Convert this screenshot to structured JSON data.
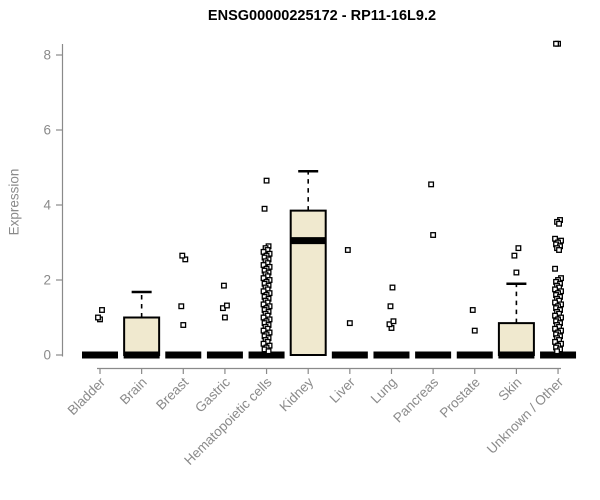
{
  "chart_data": {
    "type": "boxplot",
    "title": "ENSG00000225172 - RP11-16L9.2",
    "ylabel": "Expression",
    "xlabel": "",
    "ylim": [
      0,
      8.4
    ],
    "yticks": [
      0,
      2,
      4,
      6,
      8
    ],
    "grid": false,
    "axis_color": "#8a8a8a",
    "box_fill": "#F0E9CF",
    "box_stroke": "#000000",
    "outlier_fill": "#ffffff",
    "categories": [
      "Bladder",
      "Brain",
      "Breast",
      "Gastric",
      "Hematopoietic cells",
      "Kidney",
      "Liver",
      "Lung",
      "Pancreas",
      "Prostate",
      "Skin",
      "Unknown / Other"
    ],
    "series": [
      {
        "category": "Bladder",
        "q1": 0,
        "median": 0,
        "q3": 0,
        "whisker_low": 0,
        "whisker_high": 0,
        "outliers": [
          0.95,
          1.0,
          1.2
        ]
      },
      {
        "category": "Brain",
        "q1": 0,
        "median": 0,
        "q3": 1.0,
        "whisker_low": 0,
        "whisker_high": 1.68,
        "outliers": []
      },
      {
        "category": "Breast",
        "q1": 0,
        "median": 0,
        "q3": 0,
        "whisker_low": 0,
        "whisker_high": 0,
        "outliers": [
          0.8,
          1.3,
          2.55,
          2.65
        ]
      },
      {
        "category": "Gastric",
        "q1": 0,
        "median": 0,
        "q3": 0,
        "whisker_low": 0,
        "whisker_high": 0,
        "outliers": [
          1.0,
          1.25,
          1.32,
          1.85
        ]
      },
      {
        "category": "Hematopoietic cells",
        "q1": 0,
        "median": 0,
        "q3": 0,
        "whisker_low": 0,
        "whisker_high": 0,
        "outliers": [
          4.65,
          3.9,
          2.9,
          2.85,
          2.8,
          2.75,
          2.7,
          2.65,
          2.6,
          2.55,
          2.5,
          2.45,
          2.4,
          2.35,
          2.3,
          2.25,
          2.2,
          2.15,
          2.1,
          2.05,
          2.0,
          1.95,
          1.9,
          1.85,
          1.8,
          1.75,
          1.7,
          1.65,
          1.6,
          1.55,
          1.5,
          1.45,
          1.4,
          1.35,
          1.3,
          1.25,
          1.2,
          1.15,
          1.1,
          1.05,
          1.0,
          0.95,
          0.9,
          0.85,
          0.8,
          0.75,
          0.7,
          0.65,
          0.6,
          0.55,
          0.5,
          0.45,
          0.4,
          0.35,
          0.3,
          0.25,
          0.2,
          0.15,
          0.1
        ]
      },
      {
        "category": "Kidney",
        "q1": 0,
        "median": 3.05,
        "q3": 3.85,
        "whisker_low": 0,
        "whisker_high": 4.9,
        "outliers": []
      },
      {
        "category": "Liver",
        "q1": 0,
        "median": 0,
        "q3": 0,
        "whisker_low": 0,
        "whisker_high": 0,
        "outliers": [
          0.85,
          2.8
        ]
      },
      {
        "category": "Lung",
        "q1": 0,
        "median": 0,
        "q3": 0,
        "whisker_low": 0,
        "whisker_high": 0,
        "outliers": [
          0.72,
          0.82,
          0.9,
          1.3,
          1.8
        ]
      },
      {
        "category": "Pancreas",
        "q1": 0,
        "median": 0,
        "q3": 0,
        "whisker_low": 0,
        "whisker_high": 0,
        "outliers": [
          3.2,
          4.55
        ]
      },
      {
        "category": "Prostate",
        "q1": 0,
        "median": 0,
        "q3": 0,
        "whisker_low": 0,
        "whisker_high": 0,
        "outliers": [
          0.65,
          1.2
        ]
      },
      {
        "category": "Skin",
        "q1": 0,
        "median": 0,
        "q3": 0.85,
        "whisker_low": 0,
        "whisker_high": 1.9,
        "outliers": [
          2.2,
          2.65,
          2.85
        ]
      },
      {
        "category": "Unknown / Other",
        "q1": 0,
        "median": 0,
        "q3": 0,
        "whisker_low": 0,
        "whisker_high": 0,
        "outliers": [
          8.3,
          8.3,
          3.6,
          3.55,
          3.5,
          3.1,
          3.05,
          3.0,
          2.95,
          2.9,
          2.85,
          2.8,
          2.3,
          2.05,
          2.0,
          1.95,
          1.9,
          1.85,
          1.8,
          1.75,
          1.7,
          1.65,
          1.6,
          1.55,
          1.5,
          1.45,
          1.4,
          1.35,
          1.3,
          1.25,
          1.2,
          1.15,
          1.1,
          1.05,
          1.0,
          0.95,
          0.9,
          0.85,
          0.8,
          0.75,
          0.7,
          0.65,
          0.6,
          0.55,
          0.5,
          0.45,
          0.4,
          0.35,
          0.3,
          0.25,
          0.2,
          0.15,
          0.1
        ]
      }
    ]
  }
}
